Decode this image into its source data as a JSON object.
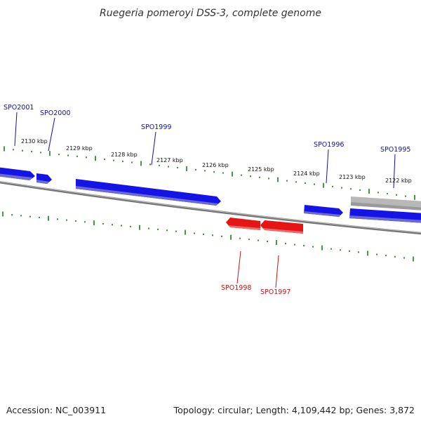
{
  "title": "Ruegeria pomeroyi DSS-3, complete genome",
  "accession": "Accession: NC_003911",
  "topology": "Topology: circular; Length: 4,109,442 bp; Genes: 3,872",
  "colors": {
    "forward": "#1010e0",
    "reverse": "#e01010",
    "other": "#b8b8b8",
    "backbone": "#777777",
    "ticks": "#1a7a1a",
    "forward_label": "#1010b0",
    "reverse_label": "#cc1111"
  },
  "ticks": [
    "2130 kbp",
    "2129 kbp",
    "2128 kbp",
    "2127 kbp",
    "2126 kbp",
    "2125 kbp",
    "2124 kbp",
    "2123 kbp",
    "2122 kbp"
  ],
  "genes": [
    {
      "id": "SPO2001",
      "strand": "forward"
    },
    {
      "id": "SPO2000",
      "strand": "forward"
    },
    {
      "id": "SPO1999",
      "strand": "forward"
    },
    {
      "id": "SPO1996",
      "strand": "forward"
    },
    {
      "id": "SPO1995",
      "strand": "forward"
    },
    {
      "id": "SPO1998",
      "strand": "reverse"
    },
    {
      "id": "SPO1997",
      "strand": "reverse"
    }
  ]
}
